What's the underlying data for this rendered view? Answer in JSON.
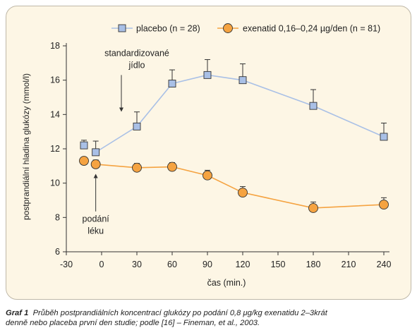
{
  "chart_data": {
    "type": "line",
    "x": [
      -15,
      -5,
      30,
      60,
      90,
      120,
      180,
      240
    ],
    "xlabel": "čas (min.)",
    "ylabel": "postprandiální hladina glukózy (mmol/l)",
    "xlim": [
      -30,
      240
    ],
    "ylim": [
      6,
      18
    ],
    "xticks": [
      "-30",
      "0",
      "30",
      "60",
      "90",
      "120",
      "150",
      "180",
      "210",
      "240"
    ],
    "yticks": [
      "6",
      "8",
      "10",
      "12",
      "14",
      "16",
      "18"
    ],
    "grid": false,
    "legend_position": "top",
    "series": [
      {
        "name": "placebo (n = 28)",
        "marker": "square",
        "color": "#a9c0e6",
        "line_color": "#a9c0e6",
        "x": [
          -15,
          -5,
          30,
          60,
          90,
          120,
          180,
          240
        ],
        "values": [
          12.2,
          11.8,
          13.3,
          15.8,
          16.3,
          16.0,
          14.5,
          12.7
        ],
        "error": [
          0.3,
          0.65,
          0.85,
          0.8,
          0.9,
          0.95,
          0.95,
          0.8
        ]
      },
      {
        "name": "exenatid 0,16–0,24 µg/den (n = 81)",
        "marker": "circle",
        "color": "#f5a341",
        "line_color": "#f5a341",
        "x": [
          -15,
          -5,
          30,
          60,
          90,
          120,
          180,
          240
        ],
        "values": [
          11.3,
          11.1,
          10.9,
          10.95,
          10.45,
          9.45,
          8.55,
          8.75
        ],
        "error": [
          0.2,
          0.25,
          0.25,
          0.25,
          0.3,
          0.35,
          0.35,
          0.4
        ]
      }
    ],
    "annotations": [
      {
        "text": "standardizované",
        "x": 30,
        "y": 17.4
      },
      {
        "text": "jídlo",
        "x": 30,
        "y": 16.7
      },
      {
        "text": "podání",
        "x": -5,
        "y": 7.75
      },
      {
        "text": "léku",
        "x": -5,
        "y": 7.05
      }
    ]
  },
  "caption": {
    "label": "Graf 1",
    "line1": "Průběh postprandiálních koncentrací glukózy po podání 0,8 μg/kg exenatidu 2–3krát",
    "line2": "denně nebo placeba první den studie; podle [16] – Fineman, et al., 2003."
  }
}
